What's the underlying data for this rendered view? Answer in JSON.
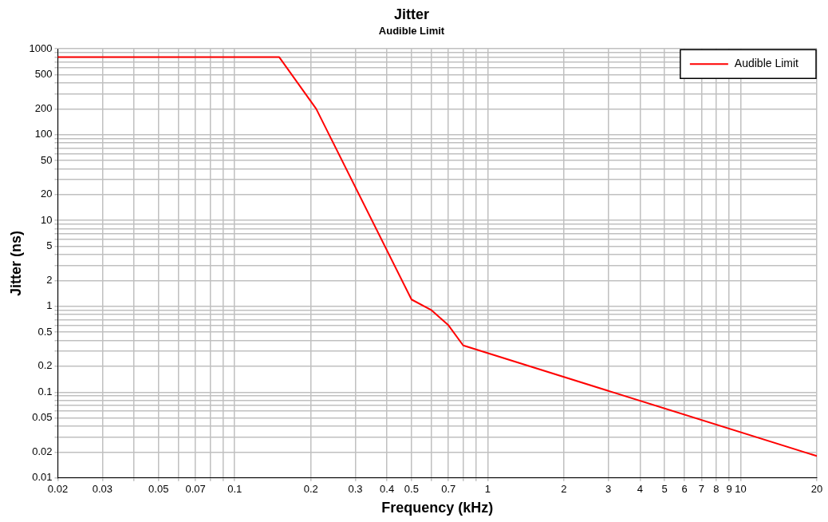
{
  "chart_data": {
    "type": "line",
    "title": "Jitter",
    "subtitle": "Audible Limit",
    "xlabel": "Frequency (kHz)",
    "ylabel": "Jitter (ns)",
    "log": "xy",
    "grid": true,
    "legend": "top right",
    "marker": "none",
    "line_style": "solid",
    "xlim": [
      0.02,
      20
    ],
    "ylim": [
      0.01,
      1000
    ],
    "xticks": [
      0.02,
      0.03,
      {
        "value": 0.04,
        "label": null
      },
      0.05,
      {
        "value": 0.06,
        "label": null
      },
      0.07,
      {
        "value": 0.08,
        "label": null
      },
      {
        "value": 0.09,
        "label": null
      },
      0.1,
      0.2,
      0.3,
      0.4,
      0.5,
      {
        "value": 0.6,
        "label": null
      },
      0.7,
      {
        "value": 0.8,
        "label": null
      },
      {
        "value": 0.9,
        "label": null
      },
      1,
      2,
      3,
      4,
      5,
      6,
      7,
      8,
      9,
      10,
      20
    ],
    "yticks": [
      0.01,
      0.02,
      {
        "value": 0.03,
        "label": null
      },
      {
        "value": 0.04,
        "label": null
      },
      0.05,
      {
        "value": 0.06,
        "label": null
      },
      {
        "value": 0.07,
        "label": null
      },
      {
        "value": 0.08,
        "label": null
      },
      {
        "value": 0.09,
        "label": null
      },
      0.1,
      0.2,
      {
        "value": 0.3,
        "label": null
      },
      {
        "value": 0.4,
        "label": null
      },
      0.5,
      {
        "value": 0.6,
        "label": null
      },
      {
        "value": 0.7,
        "label": null
      },
      {
        "value": 0.8,
        "label": null
      },
      {
        "value": 0.9,
        "label": null
      },
      1,
      2,
      {
        "value": 3,
        "label": null
      },
      {
        "value": 4,
        "label": null
      },
      5,
      {
        "value": 6,
        "label": null
      },
      {
        "value": 7,
        "label": null
      },
      {
        "value": 8,
        "label": null
      },
      {
        "value": 9,
        "label": null
      },
      10,
      20,
      {
        "value": 30,
        "label": null
      },
      {
        "value": 40,
        "label": null
      },
      50,
      {
        "value": 60,
        "label": null
      },
      {
        "value": 70,
        "label": null
      },
      {
        "value": 80,
        "label": null
      },
      {
        "value": 90,
        "label": null
      },
      100,
      200,
      {
        "value": 300,
        "label": null
      },
      {
        "value": 400,
        "label": null
      },
      500,
      {
        "value": 600,
        "label": null
      },
      {
        "value": 700,
        "label": null
      },
      {
        "value": 800,
        "label": null
      },
      {
        "value": 900,
        "label": null
      },
      1000
    ],
    "x": [
      0.02,
      0.15,
      0.21,
      0.5,
      0.6,
      0.7,
      0.8,
      20
    ],
    "series": [
      {
        "name": "Audible Limit",
        "color": "#ff0000",
        "values": [
          800,
          800,
          200,
          1.2,
          0.9,
          0.6,
          0.35,
          0.018
        ]
      }
    ]
  }
}
